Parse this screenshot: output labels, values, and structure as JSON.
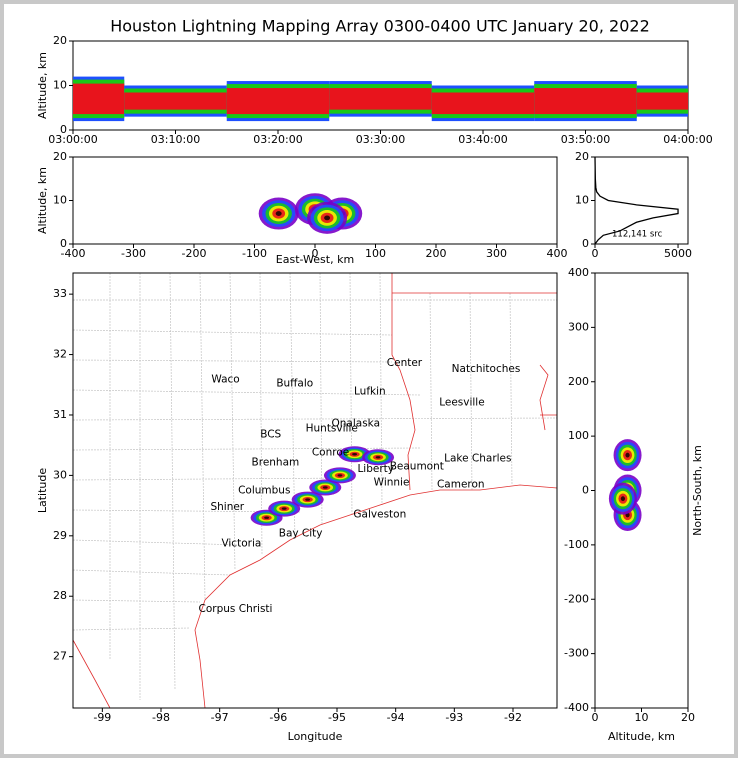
{
  "chart_data": [
    {
      "type": "band",
      "title": "Houston Lightning Mapping Array 0300-0400 UTC January 20, 2022",
      "ylabel": "Altitude, km",
      "categories": [
        "03:00:00",
        "03:10:00",
        "03:20:00",
        "03:30:00",
        "03:40:00",
        "03:50:00",
        "04:00:00"
      ],
      "low": [
        2,
        3,
        2,
        3,
        2,
        2,
        3
      ],
      "high": [
        12,
        10,
        11,
        11,
        10,
        11,
        10
      ],
      "ylim": [
        0,
        20
      ],
      "yticks": [
        0,
        10,
        20
      ],
      "color": "#e8141c"
    },
    {
      "type": "cluster",
      "xlabel": "East-West, km",
      "ylabel": "Altitude, km",
      "x": [
        -60,
        0,
        45,
        20
      ],
      "y": [
        7,
        8,
        7,
        6
      ],
      "xlim": [
        -400,
        400
      ],
      "xticks": [
        -400,
        -300,
        -200,
        -100,
        0,
        100,
        200,
        300,
        400
      ],
      "ylim": [
        0,
        20
      ],
      "yticks": [
        0,
        10,
        20
      ]
    },
    {
      "type": "line",
      "annotation": "112,141 src",
      "x": [
        0,
        200,
        500,
        1500,
        2000,
        2500,
        3500,
        5000,
        5000,
        2500,
        800,
        300,
        100,
        50,
        20,
        0
      ],
      "y": [
        0,
        1,
        2,
        3,
        4,
        5,
        6,
        7,
        8,
        9,
        10,
        11,
        12,
        13,
        15,
        20
      ],
      "xlim": [
        0,
        5600
      ],
      "xticks": [
        0,
        5000
      ],
      "ylim": [
        0,
        20
      ],
      "yticks": [
        0,
        10,
        20
      ],
      "color": "#000000"
    },
    {
      "type": "map",
      "xlabel": "Longitude",
      "ylabel": "Latitude",
      "xlim": [
        -99.5,
        -91.25
      ],
      "ylim": [
        26.15,
        33.35
      ],
      "xticks": [
        -99,
        -98,
        -97,
        -96,
        -95,
        -94,
        -93,
        -92
      ],
      "yticks": [
        27,
        28,
        29,
        30,
        31,
        32,
        33
      ],
      "cities": [
        {
          "name": "Waco",
          "lon": -96.9,
          "lat": 31.59
        },
        {
          "name": "Buffalo",
          "lon": -95.72,
          "lat": 31.52
        },
        {
          "name": "Center",
          "lon": -93.85,
          "lat": 31.86
        },
        {
          "name": "Natchitoches",
          "lon": -92.46,
          "lat": 31.76
        },
        {
          "name": "Lufkin",
          "lon": -94.44,
          "lat": 31.39
        },
        {
          "name": "Leesville",
          "lon": -92.87,
          "lat": 31.21
        },
        {
          "name": "Huntsville",
          "lon": -95.09,
          "lat": 30.78
        },
        {
          "name": "Onalaska",
          "lon": -94.68,
          "lat": 30.86
        },
        {
          "name": "BCS",
          "lon": -96.13,
          "lat": 30.68
        },
        {
          "name": "Lake Charles",
          "lon": -92.6,
          "lat": 30.28
        },
        {
          "name": "Beaumont",
          "lon": -93.64,
          "lat": 30.15
        },
        {
          "name": "Liberty",
          "lon": -94.34,
          "lat": 30.11
        },
        {
          "name": "Winnie",
          "lon": -94.07,
          "lat": 29.88
        },
        {
          "name": "Cameron",
          "lon": -92.89,
          "lat": 29.85
        },
        {
          "name": "Columbus",
          "lon": -96.24,
          "lat": 29.75
        },
        {
          "name": "Shiner",
          "lon": -96.87,
          "lat": 29.48
        },
        {
          "name": "Galveston",
          "lon": -94.27,
          "lat": 29.35
        },
        {
          "name": "Victoria",
          "lon": -96.63,
          "lat": 28.87
        },
        {
          "name": "Bay City",
          "lon": -95.62,
          "lat": 29.04
        },
        {
          "name": "Corpus Christi",
          "lon": -96.73,
          "lat": 27.79
        },
        {
          "name": "Brenham",
          "lon": -96.05,
          "lat": 30.21
        },
        {
          "name": "Conroe",
          "lon": -95.11,
          "lat": 30.38
        }
      ],
      "x": [
        -96.2,
        -95.9,
        -95.5,
        -95.2,
        -94.95,
        -94.7,
        -94.3
      ],
      "y": [
        29.3,
        29.45,
        29.6,
        29.8,
        30.0,
        30.35,
        30.3
      ]
    },
    {
      "type": "cluster",
      "xlabel": "Altitude, km",
      "ylabel": "North-South, km",
      "x": [
        7,
        7,
        6,
        7
      ],
      "y": [
        -45,
        0,
        -15,
        65
      ],
      "xlim": [
        0,
        20
      ],
      "xticks": [
        0,
        10,
        20
      ],
      "ylim": [
        -400,
        400
      ],
      "yticks": [
        -400,
        -300,
        -200,
        -100,
        0,
        100,
        200,
        300,
        400
      ]
    }
  ]
}
